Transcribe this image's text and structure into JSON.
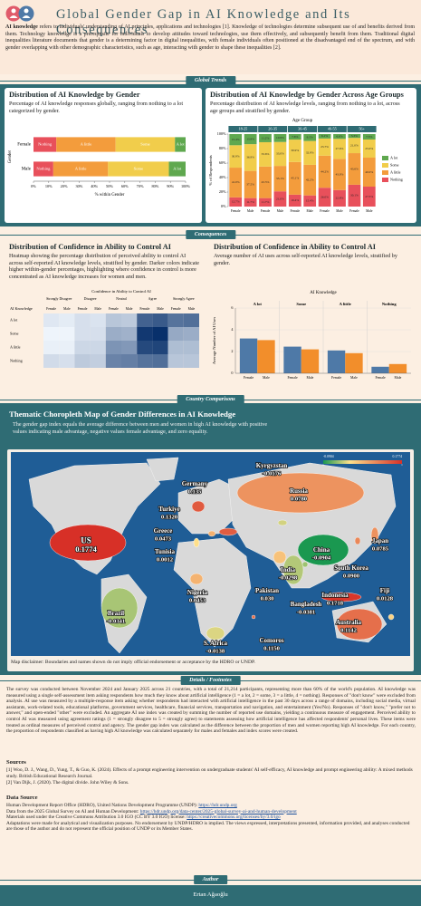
{
  "header": {
    "title": "Global Gender Gap in AI Knowledge and Its Consequences",
    "intro_term": "AI knowledge",
    "intro": "refers to individuals' understanding of AI principles, applications and technologies [1]. Knowledge of technologies determine subsequent use of and benefits derived from them. Technology knowledge is a prerequisite for individuals to develop attitudes toward technologies, use them effectively, and subsequently benefit from them. Traditional digital inequalities literature documents that gender is a determining factor in digital inequalities, with female individuals often positioned at the disadvantaged end of the spectrum, and with gender overlapping with other demographic characteristics, such as age, interacting with gender to shape these inequalities [2]."
  },
  "ribbons": [
    "Global Trends",
    "Consequences",
    "Country Comparisons",
    "Details / Footnotes",
    "Author"
  ],
  "chart_data": [
    {
      "type": "bar",
      "orientation": "horizontal",
      "stacked": true,
      "title": "Distribution of AI Knowledge by Gender",
      "description": "Percentage of AI knowledge responses globally, ranging from nothing to a lot categorized by gender.",
      "categories": [
        "Female",
        "Male"
      ],
      "series": [
        {
          "name": "Nothing",
          "color": "#e8505b",
          "values": [
            15,
            13
          ]
        },
        {
          "name": "A little",
          "color": "#f39c3c",
          "values": [
            39,
            36
          ]
        },
        {
          "name": "Some",
          "color": "#f1cd4b",
          "values": [
            39,
            40
          ]
        },
        {
          "name": "A lot",
          "color": "#5fa84f",
          "values": [
            7,
            11
          ]
        }
      ],
      "xlim": [
        0,
        100
      ],
      "xticks": [
        {
          "value": 0,
          "label": "0%"
        },
        {
          "value": 10,
          "label": "10%"
        },
        {
          "value": 20,
          "label": "20%"
        },
        {
          "value": 30,
          "label": "30%"
        },
        {
          "value": 40,
          "label": "40%"
        },
        {
          "value": 50,
          "label": "50%"
        },
        {
          "value": 60,
          "label": "60%"
        },
        {
          "value": 70,
          "label": "70%"
        },
        {
          "value": 80,
          "label": "80%"
        },
        {
          "value": 90,
          "label": "90%"
        },
        {
          "value": 100,
          "label": "100%"
        }
      ],
      "xlabel": "% within Gender",
      "ylabel": "Gender"
    },
    {
      "type": "bar",
      "orientation": "vertical",
      "stacked": true,
      "title": "Distribution of AI Knowledge by Gender Across Age Groups",
      "description": "Percentage distribution of AI knowledge levels, ranging from nothing to a lot, across age groups and stratified by gender.",
      "group_title": "Age Group",
      "groups": [
        "18-25",
        "26-35",
        "36-45",
        "46-55",
        "56+"
      ],
      "categories": [
        "Female",
        "Male",
        "Female",
        "Male",
        "Female",
        "Male",
        "Female",
        "Male",
        "Female",
        "Male"
      ],
      "series": [
        {
          "name": "Nothing",
          "color": "#e8505b",
          "values": [
            12.7,
            11.7,
            11.7,
            21.0,
            16.4,
            15.4,
            26.0,
            22.8,
            30.1,
            27.5
          ],
          "value_labels": [
            "12.7%",
            "11.7%",
            "11.7%",
            "21.0%",
            "16.4%",
            "15.4%",
            "26.0%",
            "22.8%",
            "30.1%",
            "27.5%"
          ]
        },
        {
          "name": "A little",
          "color": "#f39c3c",
          "values": [
            41.0,
            37.5,
            43.5,
            35.1,
            45.1,
            42.2,
            44.2,
            43.0,
            43.6,
            40.0
          ],
          "value_labels": [
            "41.0%",
            "37.5%",
            "43.5%",
            "35.1%",
            "45.1%",
            "42.2%",
            "44.2%",
            "43.0%",
            "43.6%",
            "40.0%"
          ]
        },
        {
          "name": "Some",
          "color": "#f1cd4b",
          "values": [
            30.9,
            36.9,
            33.6,
            33.0,
            30.9,
            32.9,
            23.7,
            27.6,
            21.0,
            25.0
          ],
          "value_labels": [
            "30.9%",
            "36.9%",
            "33.6%",
            "33.0%",
            "30.9%",
            "32.9%",
            "23.7%",
            "27.6%",
            "21.0%",
            "25.0%"
          ]
        },
        {
          "name": "A lot",
          "color": "#5fa84f",
          "values": [
            15.4,
            13.9,
            11.2,
            10.9,
            7.6,
            9.5,
            6.1,
            6.6,
            5.3,
            7.5
          ],
          "value_labels": [
            "15.4%",
            "13.9%",
            "11.2%",
            "10.9%",
            "7.6%",
            "9.5%",
            "6.1%",
            "6.6%",
            "5.3%",
            "7.5%"
          ]
        }
      ],
      "ylim": [
        0,
        100
      ],
      "yticks": [
        {
          "value": 0,
          "label": "0%"
        },
        {
          "value": 20,
          "label": "20%"
        },
        {
          "value": 40,
          "label": "40%"
        },
        {
          "value": 60,
          "label": "60%"
        },
        {
          "value": 80,
          "label": "80%"
        },
        {
          "value": 100,
          "label": "100%"
        }
      ],
      "ylabel": "% of Respondents"
    },
    {
      "type": "heatmap",
      "title": "Distribution of Confidence in Ability to Control AI",
      "description": "Heatmap showing the percentage distribution of perceived ability to control AI across self-reported AI knowledge levels, stratified by gender. Darker colors indicate higher within-gender percentages, highlighting where confidence in control is more concentrated as AI knowledge increases for women and men.",
      "plot_title": "Confidence in Ability to Control AI",
      "ylabel": "AI Knowledge",
      "groups": [
        "Strongly Disagree",
        "Disagree",
        "Neutral",
        "Agree",
        "Strongly Agree"
      ],
      "categories": [
        "Female",
        "Male",
        "Female",
        "Male",
        "Female",
        "Male",
        "Female",
        "Male",
        "Female",
        "Male"
      ],
      "rows": [
        "A lot",
        "Some",
        "A little",
        "Nothing"
      ],
      "values": [
        [
          6,
          5,
          8,
          7,
          14,
          13,
          38,
          40,
          34,
          35
        ],
        [
          3,
          3,
          8,
          8,
          20,
          19,
          48,
          50,
          21,
          20
        ],
        [
          4,
          4,
          10,
          10,
          26,
          25,
          44,
          45,
          16,
          16
        ],
        [
          9,
          8,
          13,
          12,
          30,
          31,
          34,
          35,
          14,
          14
        ]
      ],
      "colors": [
        "#eef4fb",
        "#08306b"
      ]
    },
    {
      "type": "bar",
      "orientation": "vertical",
      "stacked": false,
      "title": "Distribution of Confidence in Ability to Control AI",
      "description": "Average number of AI uses across self-reported AI knowledge levels, stratified by gender.",
      "group_title": "AI Knowledge",
      "categories": [
        "A lot",
        "Some",
        "A little",
        "Nothing"
      ],
      "series": [
        {
          "name": "Female",
          "color": "#4e79a7",
          "values": [
            3.2,
            2.45,
            2.1,
            0.6
          ]
        },
        {
          "name": "Male",
          "color": "#f28e2b",
          "values": [
            3.05,
            2.2,
            1.85,
            0.85
          ]
        }
      ],
      "ylim": [
        0,
        6
      ],
      "yticks": [
        0,
        2,
        4,
        6
      ],
      "ylabel": "Average Number of AI Uses"
    },
    {
      "type": "choropleth",
      "title": "Thematic Choropleth Map of Gender Differences in AI Knowledge",
      "description": "The gender gap index equals the average difference between men and women in high AI knowledge with positive values indicating male advantage, negative values female advantage, and zero equality.",
      "countries": [
        "Kyrgyzstan",
        "Germany",
        "Russia",
        "Turkiye",
        "Greece",
        "Tunisia",
        "US",
        "China",
        "Japan",
        "South Korea",
        "India",
        "Pakistan",
        "Bangladesh",
        "Indonesia",
        "Fiji",
        "Australia",
        "Nigeria",
        "Brazil",
        "S. Africa",
        "Comoros"
      ],
      "values": [
        -0.0176,
        0.135,
        0.078,
        0.132,
        0.0473,
        0.0012,
        0.1774,
        -0.0904,
        0.0785,
        0.09,
        -0.0298,
        0.03,
        -0.0381,
        0.1718,
        0.0128,
        0.1142,
        0.0453,
        -0.0341,
        -0.0138,
        0.115
      ],
      "value_labels": [
        "-0.0176",
        "0.135",
        "0.0780",
        "0.1320",
        "0.0473",
        "0.0012",
        "0.1774",
        "-0.0904",
        "0.0785",
        "0.0900",
        "-0.0298",
        "0.030",
        "-0.0381",
        "0.1718",
        "0.0128",
        "0.1142",
        "0.0453",
        "-0.0341",
        "-0.0138",
        "0.1150"
      ],
      "colors": [
        "#1a9850",
        "#fee08b",
        "#d73027"
      ],
      "colorbar_ticks": [
        -0.0904,
        0.1774
      ]
    }
  ],
  "map_disclaimer": "Map disclaimer: Boundaries and names shown do not imply official endorsement or acceptance by the HDRO or UNDP.",
  "details": {
    "text": "The survey was conducted between November 2024 and January 2025 across 21 countries, with a total of 21,214 participants, representing more than 60% of the world's population. AI knowledge was measured using a single self-assessment item asking respondents how much they know about artificial intelligence (1 = a lot, 2 = some, 3 = a little, 4 = nothing). Responses of \"don't know\" were excluded from analysis. AI use was measured by a multiple-response item asking whether respondents had interacted with artificial intelligence in the past 30 days across a range of domains, including social media, virtual assistants, work-related tools, educational platforms, government services, healthcare, financial services, transportation and navigation, and entertainment (Yes/No). Responses of \"don't know,\" \"prefer not to answer,\" and open-ended \"other\" were excluded. An aggregate AI use index was created by summing the number of reported use domains, yielding a continuous measure of engagement. Perceived ability to control AI was measured using agreement ratings (1 = strongly disagree to 5 = strongly agree) to statements assessing how artificial intelligence has affected respondents' personal lives. These items were treated as ordinal measures of perceived control and agency. The gender gap index was calculated as the difference between the proportion of men and women reporting high AI knowledge. For each country, the proportion of respondents classified as having high AI knowledge was calculated separately for males and females and index scores were created.",
    "sources_title": "Sources",
    "sources": [
      "[1] Woo, D. J., Wang, D., Yung, T., & Guo, K. (2024). Effects of a prompt engineering intervention on undergraduate students' AI self-efficacy, AI knowledge and prompt engineering ability: A mixed methods study. British Educational Research Journal.",
      "[2] Van Dijk, J. (2020). The digital divide. John Wiley & Sons."
    ],
    "data_source_title": "Data Source",
    "data_source": [
      {
        "text": "Human Development Report Office (HDRO), United Nations Development Programme (UNDP):",
        "link": "https://hdr.undp.org"
      },
      {
        "text": "Data from the 2025 Global Survey on AI and Human Development:",
        "link": "https://hdr.undp.org/data-center/2025-global-survey-ai-and-human-development"
      },
      {
        "text": "Materials used under the Creative Commons Attribution 3.0 IGO (CC BY 3.0 IGO) license:",
        "link": "https://creativecommons.org/licenses/by/3.0/igo"
      },
      {
        "text": "Adaptations were made for analytical and visualization purposes. No endorsement by UNDP/HDRO is implied. The views expressed, interpretations presented, information provided, and analyses conducted are those of the author and do not represent the official position of UNDP or its Member States."
      }
    ]
  },
  "author": "Ertan Ağaoğlu"
}
